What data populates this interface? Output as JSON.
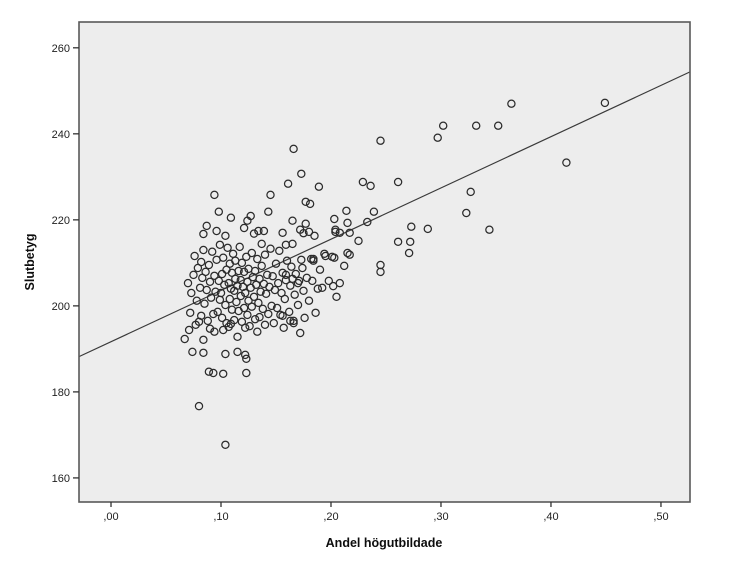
{
  "chart_data": {
    "type": "scatter",
    "title": "",
    "xlabel": "Andel högutbildade",
    "ylabel": "Slutbetyg",
    "xlim": [
      -0.0291,
      0.5264
    ],
    "ylim": [
      154.4,
      266.0
    ],
    "grid": false,
    "legend": "none",
    "plot_bg_color": "#ededed",
    "frame_color": "#595959",
    "marker": {
      "shape": "open-circle",
      "radius": 3.6,
      "color": "#2b2b2b"
    },
    "x_ticks": [
      {
        "value": 0.0,
        "label": ",00"
      },
      {
        "value": 0.1,
        "label": ",10"
      },
      {
        "value": 0.2,
        "label": ",20"
      },
      {
        "value": 0.3,
        "label": ",30"
      },
      {
        "value": 0.4,
        "label": ",40"
      },
      {
        "value": 0.5,
        "label": ",50"
      }
    ],
    "y_ticks": [
      {
        "value": 160,
        "label": "160"
      },
      {
        "value": 180,
        "label": "180"
      },
      {
        "value": 200,
        "label": "200"
      },
      {
        "value": 220,
        "label": "220"
      },
      {
        "value": 240,
        "label": "240"
      },
      {
        "value": 260,
        "label": "260"
      }
    ],
    "fit_line": {
      "x1": -0.0291,
      "y1": 188.2,
      "x2": 0.5264,
      "y2": 254.4,
      "color": "#3a3a3a",
      "width": 1.2
    },
    "points": [
      [
        0.364,
        247.0
      ],
      [
        0.449,
        247.2
      ],
      [
        0.414,
        233.3
      ],
      [
        0.297,
        239.1
      ],
      [
        0.302,
        241.9
      ],
      [
        0.332,
        241.9
      ],
      [
        0.352,
        241.9
      ],
      [
        0.245,
        238.4
      ],
      [
        0.261,
        228.8
      ],
      [
        0.229,
        228.8
      ],
      [
        0.236,
        227.9
      ],
      [
        0.239,
        221.9
      ],
      [
        0.327,
        226.5
      ],
      [
        0.323,
        221.6
      ],
      [
        0.233,
        219.5
      ],
      [
        0.273,
        218.4
      ],
      [
        0.288,
        217.9
      ],
      [
        0.344,
        217.7
      ],
      [
        0.166,
        236.5
      ],
      [
        0.173,
        230.7
      ],
      [
        0.161,
        228.4
      ],
      [
        0.189,
        227.7
      ],
      [
        0.094,
        225.8
      ],
      [
        0.145,
        225.8
      ],
      [
        0.177,
        224.2
      ],
      [
        0.181,
        223.7
      ],
      [
        0.098,
        221.9
      ],
      [
        0.143,
        221.9
      ],
      [
        0.109,
        220.5
      ],
      [
        0.127,
        220.9
      ],
      [
        0.124,
        219.8
      ],
      [
        0.121,
        218.1
      ],
      [
        0.087,
        218.6
      ],
      [
        0.214,
        222.1
      ],
      [
        0.203,
        220.2
      ],
      [
        0.215,
        219.3
      ],
      [
        0.204,
        217.7
      ],
      [
        0.096,
        217.4
      ],
      [
        0.134,
        217.4
      ],
      [
        0.139,
        217.4
      ],
      [
        0.165,
        219.8
      ],
      [
        0.177,
        219.1
      ],
      [
        0.172,
        217.7
      ],
      [
        0.18,
        217.2
      ],
      [
        0.156,
        217.0
      ],
      [
        0.204,
        217.2
      ],
      [
        0.208,
        217.0
      ],
      [
        0.217,
        217.0
      ],
      [
        0.225,
        215.1
      ],
      [
        0.215,
        212.3
      ],
      [
        0.217,
        211.9
      ],
      [
        0.212,
        209.3
      ],
      [
        0.208,
        205.3
      ],
      [
        0.261,
        214.9
      ],
      [
        0.272,
        214.9
      ],
      [
        0.271,
        212.3
      ],
      [
        0.245,
        209.5
      ],
      [
        0.245,
        207.9
      ],
      [
        0.159,
        214.2
      ],
      [
        0.165,
        214.4
      ],
      [
        0.173,
        210.7
      ],
      [
        0.184,
        210.5
      ],
      [
        0.203,
        211.2
      ],
      [
        0.198,
        205.8
      ],
      [
        0.202,
        204.6
      ],
      [
        0.192,
        204.2
      ],
      [
        0.17,
        205.3
      ],
      [
        0.159,
        207.2
      ],
      [
        0.165,
        206.3
      ],
      [
        0.156,
        197.7
      ],
      [
        0.163,
        196.5
      ],
      [
        0.166,
        196.0
      ],
      [
        0.084,
        216.7
      ],
      [
        0.104,
        216.3
      ],
      [
        0.13,
        216.8
      ],
      [
        0.175,
        216.9
      ],
      [
        0.185,
        216.3
      ],
      [
        0.074,
        189.3
      ],
      [
        0.084,
        189.1
      ],
      [
        0.104,
        188.8
      ],
      [
        0.115,
        189.3
      ],
      [
        0.122,
        188.6
      ],
      [
        0.123,
        187.7
      ],
      [
        0.089,
        184.7
      ],
      [
        0.093,
        184.4
      ],
      [
        0.102,
        184.2
      ],
      [
        0.123,
        184.4
      ],
      [
        0.08,
        176.7
      ],
      [
        0.104,
        167.7
      ],
      [
        0.133,
        194.0
      ],
      [
        0.07,
        205.3
      ],
      [
        0.072,
        198.4
      ],
      [
        0.073,
        203.0
      ],
      [
        0.075,
        207.2
      ],
      [
        0.076,
        211.6
      ],
      [
        0.077,
        195.6
      ],
      [
        0.078,
        201.2
      ],
      [
        0.079,
        208.8
      ],
      [
        0.08,
        196.3
      ],
      [
        0.081,
        204.2
      ],
      [
        0.082,
        197.7
      ],
      [
        0.082,
        210.2
      ],
      [
        0.083,
        206.5
      ],
      [
        0.084,
        192.1
      ],
      [
        0.084,
        213.0
      ],
      [
        0.085,
        200.5
      ],
      [
        0.086,
        207.9
      ],
      [
        0.087,
        203.7
      ],
      [
        0.088,
        196.5
      ],
      [
        0.089,
        209.5
      ],
      [
        0.09,
        194.7
      ],
      [
        0.09,
        205.6
      ],
      [
        0.091,
        201.9
      ],
      [
        0.092,
        212.6
      ],
      [
        0.093,
        198.1
      ],
      [
        0.094,
        194.0
      ],
      [
        0.094,
        207.0
      ],
      [
        0.095,
        203.3
      ],
      [
        0.096,
        210.7
      ],
      [
        0.097,
        198.6
      ],
      [
        0.098,
        205.8
      ],
      [
        0.099,
        201.4
      ],
      [
        0.099,
        214.2
      ],
      [
        0.071,
        194.4
      ],
      [
        0.067,
        192.3
      ],
      [
        0.1,
        203.0
      ],
      [
        0.101,
        207.4
      ],
      [
        0.101,
        197.2
      ],
      [
        0.102,
        194.4
      ],
      [
        0.102,
        211.2
      ],
      [
        0.103,
        204.9
      ],
      [
        0.104,
        200.2
      ],
      [
        0.105,
        208.4
      ],
      [
        0.105,
        196.0
      ],
      [
        0.106,
        213.5
      ],
      [
        0.107,
        195.1
      ],
      [
        0.107,
        205.3
      ],
      [
        0.108,
        201.6
      ],
      [
        0.108,
        209.8
      ],
      [
        0.109,
        195.8
      ],
      [
        0.109,
        204.0
      ],
      [
        0.11,
        207.7
      ],
      [
        0.11,
        199.1
      ],
      [
        0.111,
        212.1
      ],
      [
        0.112,
        203.5
      ],
      [
        0.112,
        196.7
      ],
      [
        0.113,
        206.3
      ],
      [
        0.113,
        210.5
      ],
      [
        0.114,
        200.9
      ],
      [
        0.115,
        192.8
      ],
      [
        0.115,
        204.7
      ],
      [
        0.116,
        208.1
      ],
      [
        0.116,
        198.8
      ],
      [
        0.117,
        213.7
      ],
      [
        0.118,
        202.3
      ],
      [
        0.118,
        206.0
      ],
      [
        0.119,
        196.3
      ],
      [
        0.119,
        210.0
      ],
      [
        0.12,
        204.4
      ],
      [
        0.121,
        199.5
      ],
      [
        0.121,
        207.9
      ],
      [
        0.122,
        194.9
      ],
      [
        0.122,
        203.0
      ],
      [
        0.123,
        211.4
      ],
      [
        0.124,
        197.9
      ],
      [
        0.124,
        205.6
      ],
      [
        0.125,
        201.2
      ],
      [
        0.125,
        208.6
      ],
      [
        0.126,
        195.3
      ],
      [
        0.127,
        204.2
      ],
      [
        0.128,
        199.8
      ],
      [
        0.128,
        212.3
      ],
      [
        0.129,
        206.7
      ],
      [
        0.13,
        202.1
      ],
      [
        0.131,
        208.1
      ],
      [
        0.131,
        196.9
      ],
      [
        0.132,
        204.9
      ],
      [
        0.133,
        210.9
      ],
      [
        0.134,
        200.7
      ],
      [
        0.135,
        206.3
      ],
      [
        0.135,
        197.4
      ],
      [
        0.136,
        203.3
      ],
      [
        0.137,
        209.3
      ],
      [
        0.137,
        214.4
      ],
      [
        0.138,
        199.3
      ],
      [
        0.139,
        205.1
      ],
      [
        0.14,
        195.6
      ],
      [
        0.14,
        211.9
      ],
      [
        0.141,
        202.8
      ],
      [
        0.142,
        207.2
      ],
      [
        0.143,
        198.1
      ],
      [
        0.144,
        204.4
      ],
      [
        0.145,
        213.3
      ],
      [
        0.146,
        200.0
      ],
      [
        0.147,
        206.9
      ],
      [
        0.148,
        196.0
      ],
      [
        0.149,
        203.7
      ],
      [
        0.15,
        209.8
      ],
      [
        0.151,
        199.5
      ],
      [
        0.152,
        205.3
      ],
      [
        0.153,
        212.8
      ],
      [
        0.154,
        197.9
      ],
      [
        0.155,
        203.0
      ],
      [
        0.156,
        207.7
      ],
      [
        0.157,
        194.9
      ],
      [
        0.158,
        201.6
      ],
      [
        0.159,
        206.0
      ],
      [
        0.16,
        210.5
      ],
      [
        0.162,
        198.6
      ],
      [
        0.163,
        204.7
      ],
      [
        0.164,
        209.1
      ],
      [
        0.166,
        196.5
      ],
      [
        0.167,
        202.6
      ],
      [
        0.168,
        207.4
      ],
      [
        0.17,
        200.2
      ],
      [
        0.171,
        205.8
      ],
      [
        0.172,
        193.7
      ],
      [
        0.174,
        208.8
      ],
      [
        0.175,
        203.5
      ],
      [
        0.176,
        197.2
      ],
      [
        0.178,
        206.5
      ],
      [
        0.18,
        201.2
      ],
      [
        0.182,
        210.9
      ],
      [
        0.183,
        205.8
      ],
      [
        0.184,
        210.9
      ],
      [
        0.186,
        198.4
      ],
      [
        0.188,
        204.0
      ],
      [
        0.19,
        208.4
      ],
      [
        0.194,
        212.1
      ],
      [
        0.195,
        211.6
      ],
      [
        0.201,
        211.4
      ],
      [
        0.205,
        202.1
      ]
    ]
  }
}
